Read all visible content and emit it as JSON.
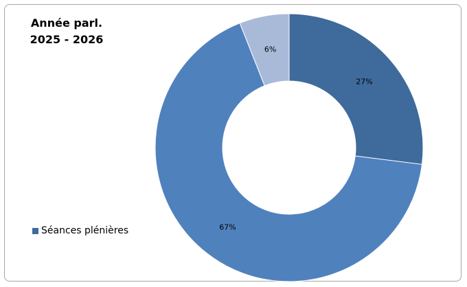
{
  "title": {
    "line1": "Année parl.",
    "line2": "2025 - 2026"
  },
  "chart_data": {
    "type": "pie",
    "variant": "donut",
    "title": "Année parl. 2025 - 2026",
    "slices": [
      {
        "label": "27%",
        "value": 27,
        "color": "#3f6a9c"
      },
      {
        "label": "67%",
        "value": 67,
        "color": "#4f81bd"
      },
      {
        "label": "6%",
        "value": 6,
        "color": "#a9bad9"
      }
    ],
    "legend": [
      {
        "name": "Séances plénières",
        "color": "#3f6a9c"
      }
    ],
    "legend_position": "left"
  }
}
